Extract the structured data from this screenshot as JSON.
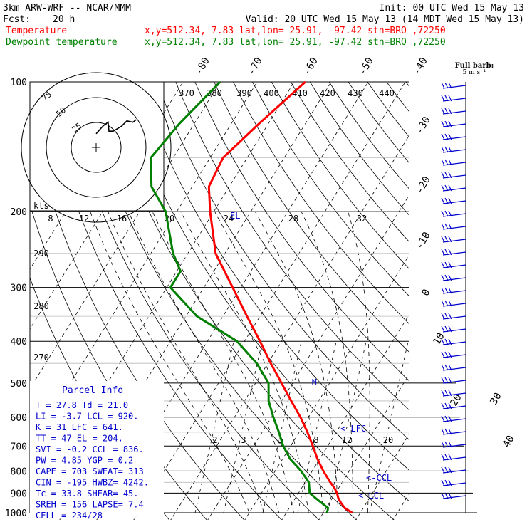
{
  "header": {
    "model": "3km ARW-WRF -- NCAR/MMM",
    "init": "Init: 00 UTC Wed 15 May 13",
    "fcst_label": "Fcst:",
    "fcst_value": "20 h",
    "valid": "Valid: 20 UTC Wed 15 May 13 (14 MDT Wed 15 May 13)",
    "temperature_label": "Temperature",
    "dewpoint_label": "Dewpoint temperature",
    "temperature_info": "x,y=512.34,  7.83   lat,lon= 25.91, -97.42  stn=BRO ,72250",
    "dewpoint_info": "x,y=512.34,  7.83   lat,lon= 25.91, -97.42  stn=BRO ,72250",
    "full_barb_label": "Full barb:",
    "full_barb_units": "5 m s⁻¹"
  },
  "colors": {
    "temperature": "#ff0000",
    "dewpoint": "#008000",
    "wind": "#0000cc",
    "text": "#000000",
    "grid": "#000000",
    "guide": "#000000"
  },
  "parcel_info": {
    "title": "Parcel Info",
    "lines": [
      "T   =   27.8  Td =  21.0",
      "LI  =   -3.7  LCL =  920.",
      "K   =     31  LFC =  641.",
      "TT  =     47  EL  =  204.",
      "SVI =   -0.2  CCL =  836.",
      "PW  =   4.85  YGP =   0.2",
      "CAPE =   703  SWEAT=  313",
      "CIN  =  -195  HWBZ= 4242.",
      "Tc  =   33.8  SHEAR=  45.",
      "SREH =   156  LAPSE=  7.4",
      "CELL = 234/28"
    ]
  },
  "annotations": {
    "el": "EL",
    "lfc": "LFC",
    "ccl": "CCL",
    "lcl": "LCL",
    "m": "M",
    "kts": "kts"
  },
  "chart_data": {
    "type": "skew-t",
    "pressure_levels": [
      100,
      200,
      300,
      400,
      500,
      600,
      700,
      800,
      900,
      1000
    ],
    "pressure_labels": [
      "100",
      "200",
      "300",
      "400",
      "500",
      "600",
      "700",
      "800",
      "900",
      "1000"
    ],
    "isotherm_labels": [
      "-80",
      "-70",
      "-60",
      "-50",
      "-40",
      "-30",
      "-20",
      "-10",
      "0",
      "10",
      "20",
      "30",
      "40"
    ],
    "theta_labels": [
      "370",
      "380",
      "390",
      "400",
      "410",
      "420",
      "430",
      "440"
    ],
    "mixing_ratio_labels": [
      "2",
      "3",
      "5",
      "8",
      "12",
      "20"
    ],
    "theta_e_labels": [
      "290",
      "280",
      "270"
    ],
    "hodograph": {
      "rings": [
        "25",
        "50",
        "75"
      ],
      "speed_axis_labels": [
        "8",
        "12",
        "16",
        "20",
        "24",
        "28",
        "32"
      ],
      "trace": [
        [
          0,
          -8
        ],
        [
          8,
          -20
        ],
        [
          14,
          -26
        ],
        [
          15,
          -12
        ],
        [
          20,
          -12
        ],
        [
          30,
          -20
        ],
        [
          36,
          -28
        ],
        [
          43,
          -26
        ],
        [
          47,
          -30
        ]
      ]
    },
    "series": [
      {
        "name": "Temperature",
        "points": [
          [
            1000,
            27.8
          ],
          [
            975,
            25.0
          ],
          [
            950,
            23.2
          ],
          [
            925,
            21.6
          ],
          [
            900,
            20.4
          ],
          [
            875,
            18.8
          ],
          [
            850,
            16.8
          ],
          [
            800,
            13.0
          ],
          [
            750,
            9.4
          ],
          [
            700,
            6.0
          ],
          [
            650,
            2.2
          ],
          [
            600,
            -2.2
          ],
          [
            550,
            -7.4
          ],
          [
            500,
            -13.0
          ],
          [
            450,
            -19.2
          ],
          [
            400,
            -25.8
          ],
          [
            350,
            -33.5
          ],
          [
            300,
            -42.2
          ],
          [
            250,
            -52.5
          ],
          [
            200,
            -61.0
          ],
          [
            175,
            -65.5
          ],
          [
            150,
            -66.5
          ],
          [
            125,
            -62.5
          ],
          [
            100,
            -57.0
          ]
        ]
      },
      {
        "name": "Dewpoint temperature",
        "points": [
          [
            1000,
            21.0
          ],
          [
            975,
            20.5
          ],
          [
            950,
            18.0
          ],
          [
            925,
            15.5
          ],
          [
            900,
            13.0
          ],
          [
            875,
            12.0
          ],
          [
            850,
            11.0
          ],
          [
            800,
            7.0
          ],
          [
            750,
            2.0
          ],
          [
            700,
            -2.0
          ],
          [
            650,
            -5.5
          ],
          [
            600,
            -9.5
          ],
          [
            550,
            -13.5
          ],
          [
            500,
            -16.5
          ],
          [
            450,
            -23.0
          ],
          [
            400,
            -32.0
          ],
          [
            350,
            -47.0
          ],
          [
            300,
            -59.0
          ],
          [
            275,
            -59.0
          ],
          [
            250,
            -64.0
          ],
          [
            200,
            -73.0
          ],
          [
            175,
            -81.0
          ],
          [
            150,
            -86.0
          ],
          [
            125,
            -84.0
          ],
          [
            100,
            -80.0
          ]
        ]
      }
    ]
  }
}
